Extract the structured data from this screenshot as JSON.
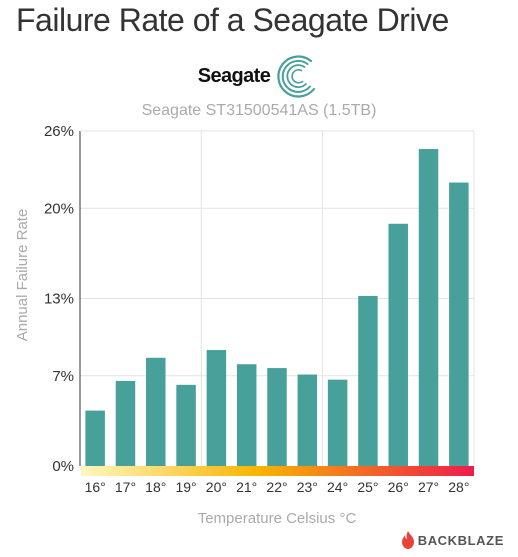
{
  "page": {
    "title": "Failure Rate of a Seagate Drive",
    "brand": "Seagate",
    "subtitle": "Seagate ST31500541AS (1.5TB)",
    "footer_brand": "BACKBLAZE"
  },
  "colors": {
    "bar": "#48a09a",
    "grid": "#e3e3e3",
    "axis": "#333333",
    "title": "#333333",
    "muted": "#aaaaaa",
    "gradient_start": "#fff7c0",
    "gradient_mid": "#f7b500",
    "gradient_end": "#ee1c4c",
    "flame": "#e8433a"
  },
  "icons": [
    "seagate-swirl-icon",
    "backblaze-flame-icon"
  ],
  "chart_data": {
    "type": "bar",
    "ylabel": "Annual Failure Rate",
    "xlabel": "Temperature Celsius °C",
    "ylim": [
      0,
      26
    ],
    "yticks": [
      0,
      7,
      13,
      20,
      26
    ],
    "ytick_labels": [
      "0%",
      "7%",
      "13%",
      "20%",
      "26%"
    ],
    "grid": true,
    "categories": [
      "16°",
      "17°",
      "18°",
      "19°",
      "20°",
      "21°",
      "22°",
      "23°",
      "24°",
      "25°",
      "26°",
      "27°",
      "28°"
    ],
    "values": [
      4.3,
      6.6,
      8.4,
      6.3,
      9.0,
      7.9,
      7.6,
      7.1,
      6.7,
      13.2,
      18.8,
      24.6,
      22.0
    ]
  }
}
